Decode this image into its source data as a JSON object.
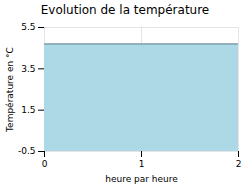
{
  "chart_data": {
    "type": "area",
    "title": "Evolution de la température",
    "xlabel": "heure par heure",
    "ylabel": "Température en °C",
    "x": [
      0,
      2
    ],
    "values": [
      4.7,
      4.7
    ],
    "color": "#add8e6",
    "xlim": [
      0,
      2
    ],
    "xticks": [
      0,
      1,
      2
    ],
    "ylim": [
      -0.5,
      5.5
    ],
    "yticks": [
      -0.5,
      1.5,
      3.5,
      5.5
    ],
    "grid": true
  }
}
